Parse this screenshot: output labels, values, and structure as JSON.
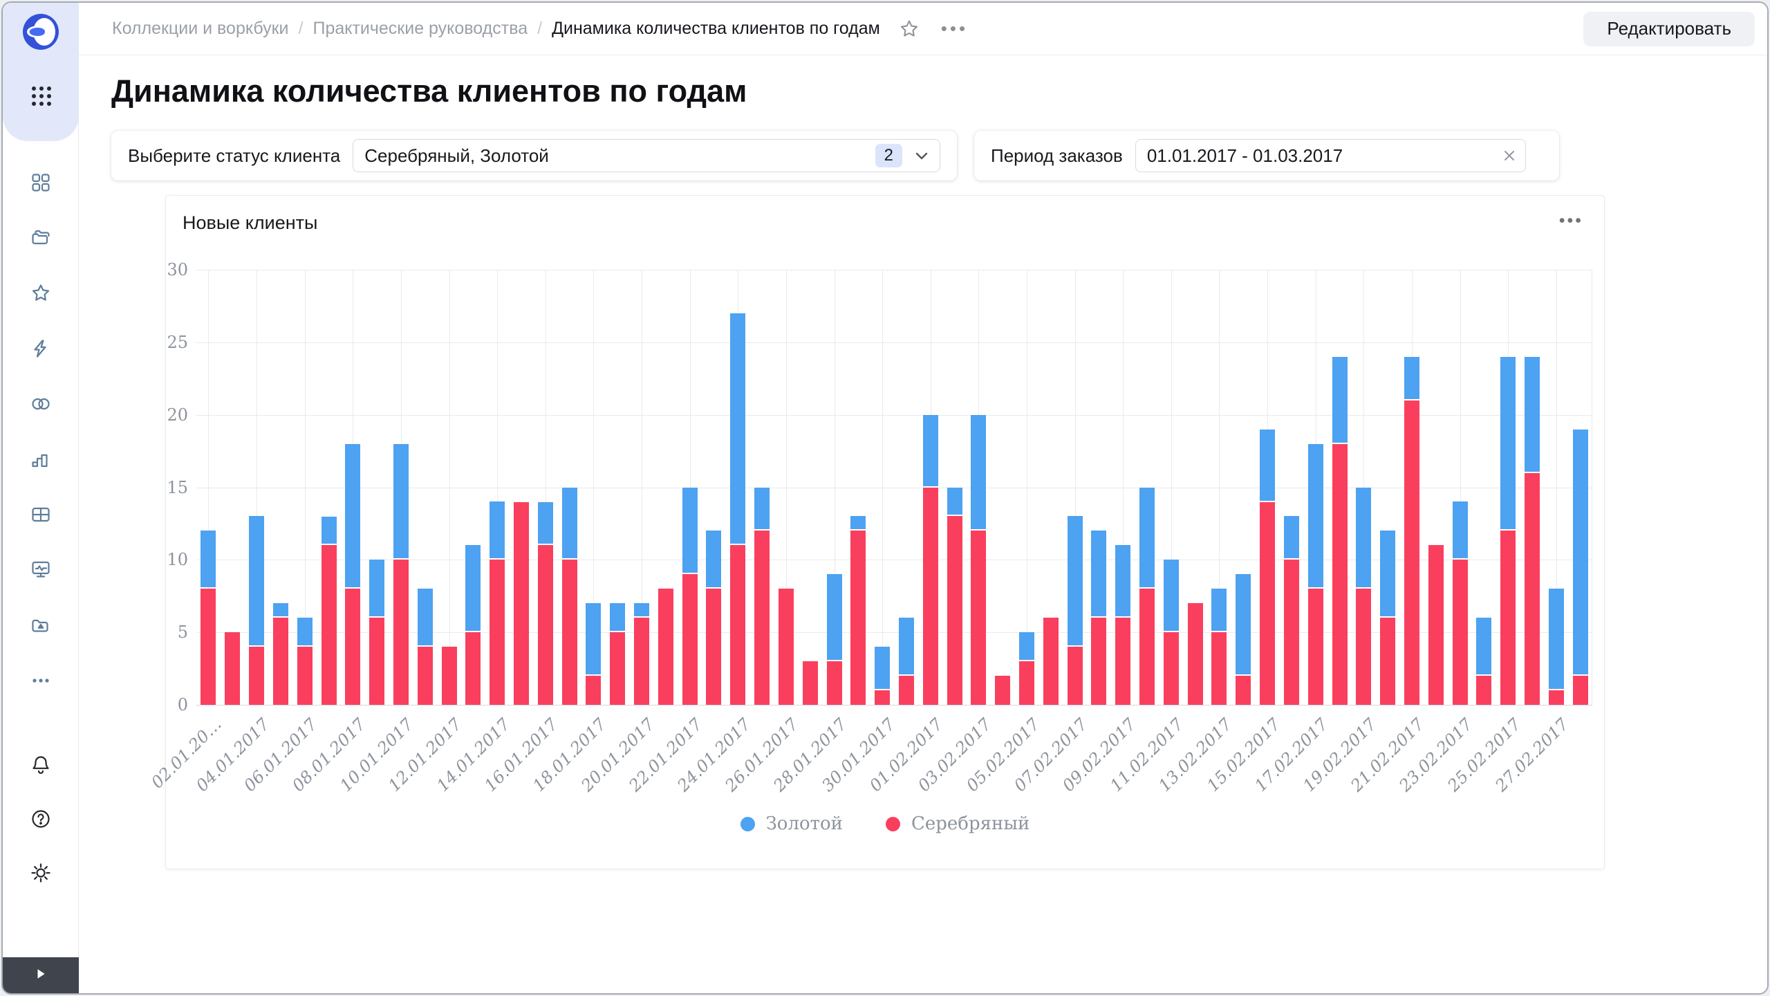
{
  "header": {
    "breadcrumb": {
      "separator": "/",
      "items": [
        "Коллекции и воркбуки",
        "Практические руководства",
        "Динамика количества клиентов по годам"
      ]
    },
    "more_icon": "•••",
    "edit_button": "Редактировать"
  },
  "sidebar": {
    "icons": [
      "datalens-logo",
      "apps-grid",
      "squares",
      "folders",
      "star",
      "lightning",
      "linked-circles",
      "bar-chart",
      "table",
      "monitor-chart",
      "folder-upload",
      "more-dots",
      "bell",
      "help",
      "gear",
      "expand-arrow"
    ]
  },
  "page": {
    "title": "Динамика количества клиентов по годам"
  },
  "filters": {
    "status": {
      "label": "Выберите статус клиента",
      "value": "Серебряный, Золотой",
      "count_badge": "2"
    },
    "period": {
      "label": "Период заказов",
      "value": "01.01.2017 - 01.03.2017"
    }
  },
  "panel": {
    "title": "Новые клиенты",
    "menu_icon": "•••"
  },
  "colors": {
    "gold": "#4DA2F1",
    "silver": "#FA3F5E",
    "grid": "#E9EAED",
    "axis_text": "#8D939D",
    "sidebar_icon": "#5E7D9A",
    "accent_badge_bg": "#DBE4FA",
    "logo_blue": "#3352D9"
  },
  "chart_data": {
    "type": "bar",
    "stacked": true,
    "title": "Новые клиенты",
    "xlabel": "",
    "ylabel": "",
    "ylim": [
      0,
      30
    ],
    "yticks": [
      0,
      5,
      10,
      15,
      20,
      25,
      30
    ],
    "grid": true,
    "legend_position": "bottom",
    "categories": [
      "02.01.2017",
      "03.01.2017",
      "04.01.2017",
      "05.01.2017",
      "06.01.2017",
      "07.01.2017",
      "08.01.2017",
      "09.01.2017",
      "10.01.2017",
      "11.01.2017",
      "12.01.2017",
      "13.01.2017",
      "14.01.2017",
      "15.01.2017",
      "16.01.2017",
      "17.01.2017",
      "18.01.2017",
      "19.01.2017",
      "20.01.2017",
      "21.01.2017",
      "22.01.2017",
      "23.01.2017",
      "24.01.2017",
      "25.01.2017",
      "26.01.2017",
      "27.01.2017",
      "28.01.2017",
      "29.01.2017",
      "30.01.2017",
      "31.01.2017",
      "01.02.2017",
      "02.02.2017",
      "03.02.2017",
      "04.02.2017",
      "05.02.2017",
      "06.02.2017",
      "07.02.2017",
      "08.02.2017",
      "09.02.2017",
      "10.02.2017",
      "11.02.2017",
      "12.02.2017",
      "13.02.2017",
      "14.02.2017",
      "15.02.2017",
      "16.02.2017",
      "17.02.2017",
      "18.02.2017",
      "19.02.2017",
      "20.02.2017",
      "21.02.2017",
      "22.02.2017",
      "23.02.2017",
      "24.02.2017",
      "25.02.2017",
      "26.02.2017",
      "27.02.2017",
      "28.02.2017"
    ],
    "xtick_labels": [
      "02.01.20…",
      "04.01.2017",
      "06.01.2017",
      "08.01.2017",
      "10.01.2017",
      "12.01.2017",
      "14.01.2017",
      "16.01.2017",
      "18.01.2017",
      "20.01.2017",
      "22.01.2017",
      "24.01.2017",
      "26.01.2017",
      "28.01.2017",
      "30.01.2017",
      "01.02.2017",
      "03.02.2017",
      "05.02.2017",
      "07.02.2017",
      "09.02.2017",
      "11.02.2017",
      "13.02.2017",
      "15.02.2017",
      "17.02.2017",
      "19.02.2017",
      "21.02.2017",
      "23.02.2017",
      "25.02.2017",
      "27.02.2017"
    ],
    "series": [
      {
        "name": "Золотой",
        "color": "#4DA2F1",
        "stack_order": "top",
        "values": [
          4,
          0,
          9,
          1,
          2,
          2,
          10,
          4,
          8,
          4,
          0,
          6,
          4,
          0,
          3,
          5,
          5,
          2,
          1,
          0,
          6,
          4,
          16,
          3,
          0,
          0,
          6,
          1,
          3,
          4,
          5,
          2,
          8,
          0,
          2,
          0,
          9,
          6,
          5,
          7,
          5,
          0,
          3,
          7,
          5,
          3,
          10,
          6,
          7,
          6,
          3,
          0,
          4,
          4,
          12,
          8,
          7,
          17
        ]
      },
      {
        "name": "Серебряный",
        "color": "#FA3F5E",
        "stack_order": "bottom",
        "values": [
          8,
          5,
          4,
          6,
          4,
          11,
          8,
          6,
          10,
          4,
          4,
          5,
          10,
          14,
          11,
          10,
          2,
          5,
          6,
          8,
          9,
          8,
          11,
          12,
          8,
          3,
          3,
          12,
          1,
          2,
          15,
          13,
          12,
          2,
          3,
          6,
          4,
          6,
          6,
          8,
          5,
          7,
          5,
          2,
          14,
          10,
          8,
          18,
          8,
          6,
          21,
          11,
          10,
          2,
          12,
          16,
          1,
          2
        ]
      }
    ]
  }
}
